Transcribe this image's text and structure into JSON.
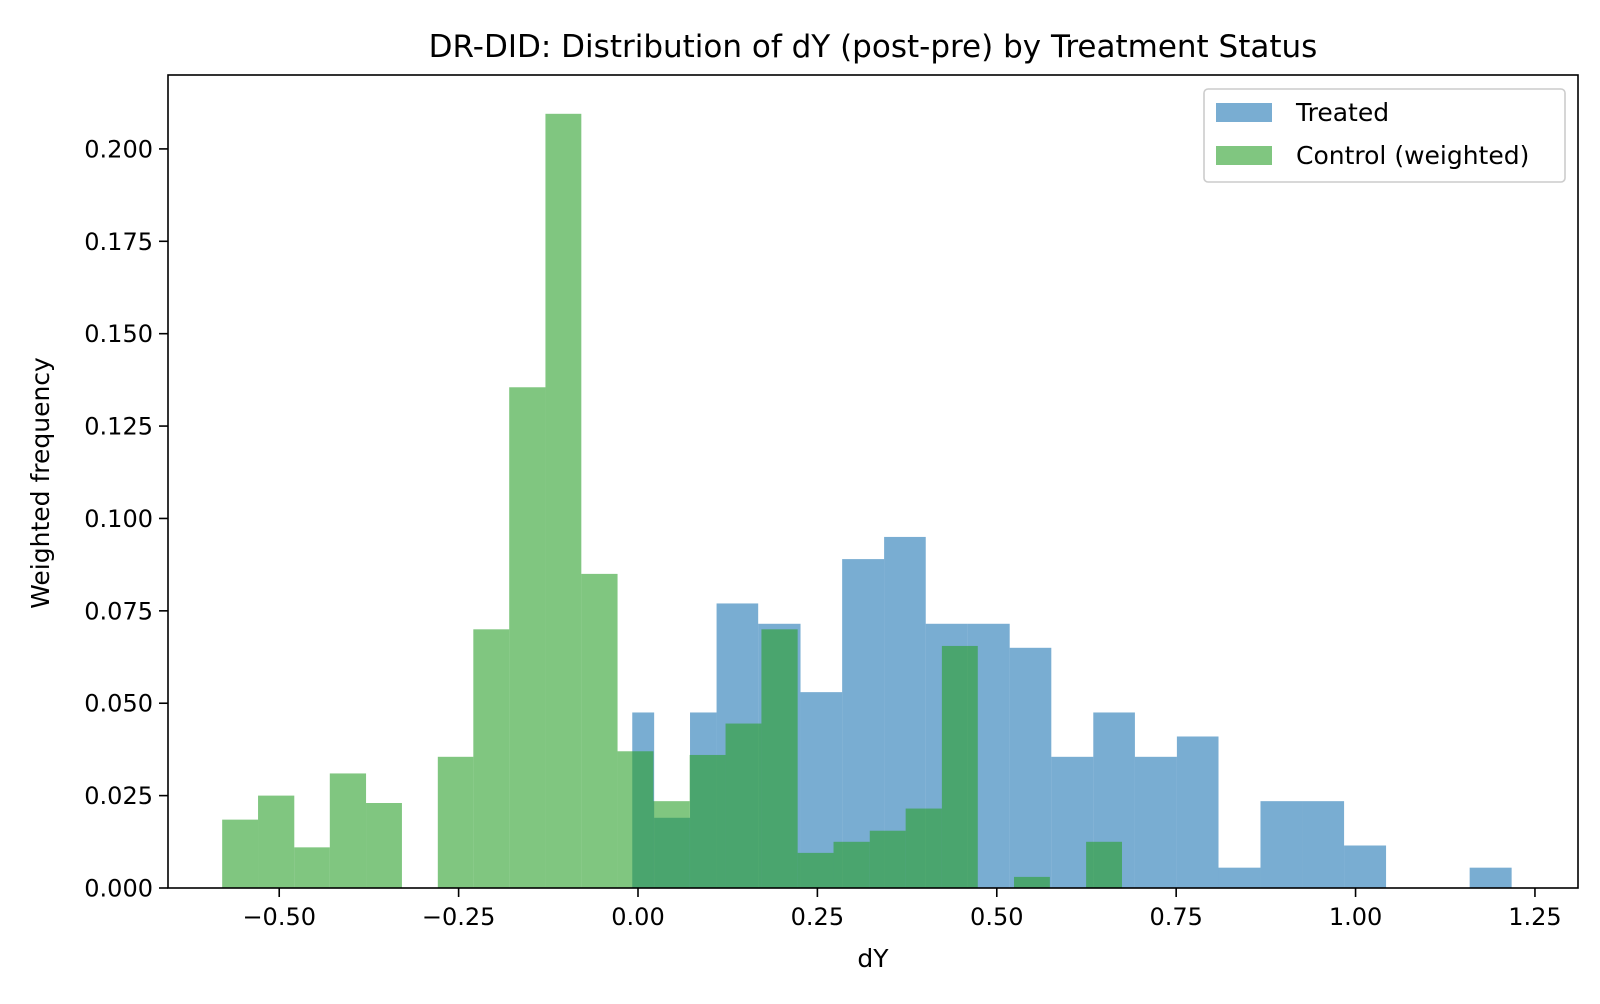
{
  "chart_data": {
    "type": "bar",
    "title": "DR-DID: Distribution of dY (post-pre) by Treatment Status",
    "xlabel": "dY",
    "ylabel": "Weighted frequency",
    "xlim": [
      -0.655,
      1.31
    ],
    "ylim": [
      0,
      0.22
    ],
    "grid": false,
    "legend_position": "top-right",
    "x_ticks": [
      -0.5,
      -0.25,
      0.0,
      0.25,
      0.5,
      0.75,
      1.0,
      1.25
    ],
    "x_tick_labels": [
      "−0.50",
      "−0.25",
      "0.00",
      "0.25",
      "0.50",
      "0.75",
      "1.00",
      "1.25"
    ],
    "y_ticks": [
      0,
      0.025,
      0.05,
      0.075,
      0.1,
      0.125,
      0.15,
      0.175,
      0.2
    ],
    "y_tick_labels": [
      "0.000",
      "0.025",
      "0.050",
      "0.075",
      "0.100",
      "0.125",
      "0.150",
      "0.175",
      "0.200"
    ],
    "series": [
      {
        "name": "Treated",
        "color": "#1f77b4",
        "opacity": 0.6,
        "bins": [
          {
            "x0": -0.008,
            "x1": 0.0225,
            "y": 0.0475
          },
          {
            "x0": 0.0225,
            "x1": 0.0725,
            "y": 0.019
          },
          {
            "x0": 0.0725,
            "x1": 0.1095,
            "y": 0.0475
          },
          {
            "x0": 0.1095,
            "x1": 0.1675,
            "y": 0.077
          },
          {
            "x0": 0.1675,
            "x1": 0.2265,
            "y": 0.0715
          },
          {
            "x0": 0.2265,
            "x1": 0.2845,
            "y": 0.053
          },
          {
            "x0": 0.2845,
            "x1": 0.343,
            "y": 0.089
          },
          {
            "x0": 0.343,
            "x1": 0.401,
            "y": 0.095
          },
          {
            "x0": 0.401,
            "x1": 0.4595,
            "y": 0.0715
          },
          {
            "x0": 0.4595,
            "x1": 0.518,
            "y": 0.0715
          },
          {
            "x0": 0.518,
            "x1": 0.576,
            "y": 0.065
          },
          {
            "x0": 0.576,
            "x1": 0.6345,
            "y": 0.0355
          },
          {
            "x0": 0.6345,
            "x1": 0.6925,
            "y": 0.0475
          },
          {
            "x0": 0.6925,
            "x1": 0.751,
            "y": 0.0355
          },
          {
            "x0": 0.751,
            "x1": 0.809,
            "y": 0.041
          },
          {
            "x0": 0.809,
            "x1": 0.8675,
            "y": 0.0055
          },
          {
            "x0": 0.8675,
            "x1": 0.926,
            "y": 0.0235
          },
          {
            "x0": 0.926,
            "x1": 0.984,
            "y": 0.0235
          },
          {
            "x0": 0.984,
            "x1": 1.0425,
            "y": 0.0115
          },
          {
            "x0": 1.159,
            "x1": 1.2175,
            "y": 0.0055
          }
        ]
      },
      {
        "name": "Control (weighted)",
        "color": "#2ca02c",
        "opacity": 0.6,
        "bins": [
          {
            "x0": -0.5795,
            "x1": -0.5295,
            "y": 0.0185
          },
          {
            "x0": -0.5295,
            "x1": -0.479,
            "y": 0.025
          },
          {
            "x0": -0.479,
            "x1": -0.4295,
            "y": 0.011
          },
          {
            "x0": -0.4295,
            "x1": -0.379,
            "y": 0.031
          },
          {
            "x0": -0.379,
            "x1": -0.329,
            "y": 0.023
          },
          {
            "x0": -0.279,
            "x1": -0.2295,
            "y": 0.0355
          },
          {
            "x0": -0.2295,
            "x1": -0.1795,
            "y": 0.07
          },
          {
            "x0": -0.1795,
            "x1": -0.129,
            "y": 0.1355
          },
          {
            "x0": -0.129,
            "x1": -0.079,
            "y": 0.2095
          },
          {
            "x0": -0.079,
            "x1": -0.0285,
            "y": 0.085
          },
          {
            "x0": -0.0285,
            "x1": 0.0215,
            "y": 0.037
          },
          {
            "x0": 0.0215,
            "x1": 0.072,
            "y": 0.0235
          },
          {
            "x0": 0.072,
            "x1": 0.122,
            "y": 0.036
          },
          {
            "x0": 0.122,
            "x1": 0.172,
            "y": 0.0445
          },
          {
            "x0": 0.172,
            "x1": 0.2225,
            "y": 0.07
          },
          {
            "x0": 0.2225,
            "x1": 0.2725,
            "y": 0.0095
          },
          {
            "x0": 0.2725,
            "x1": 0.323,
            "y": 0.0125
          },
          {
            "x0": 0.323,
            "x1": 0.373,
            "y": 0.0155
          },
          {
            "x0": 0.373,
            "x1": 0.4235,
            "y": 0.0215
          },
          {
            "x0": 0.4235,
            "x1": 0.4735,
            "y": 0.0655
          },
          {
            "x0": 0.524,
            "x1": 0.574,
            "y": 0.003
          },
          {
            "x0": 0.6245,
            "x1": 0.6745,
            "y": 0.0125
          }
        ]
      }
    ]
  }
}
